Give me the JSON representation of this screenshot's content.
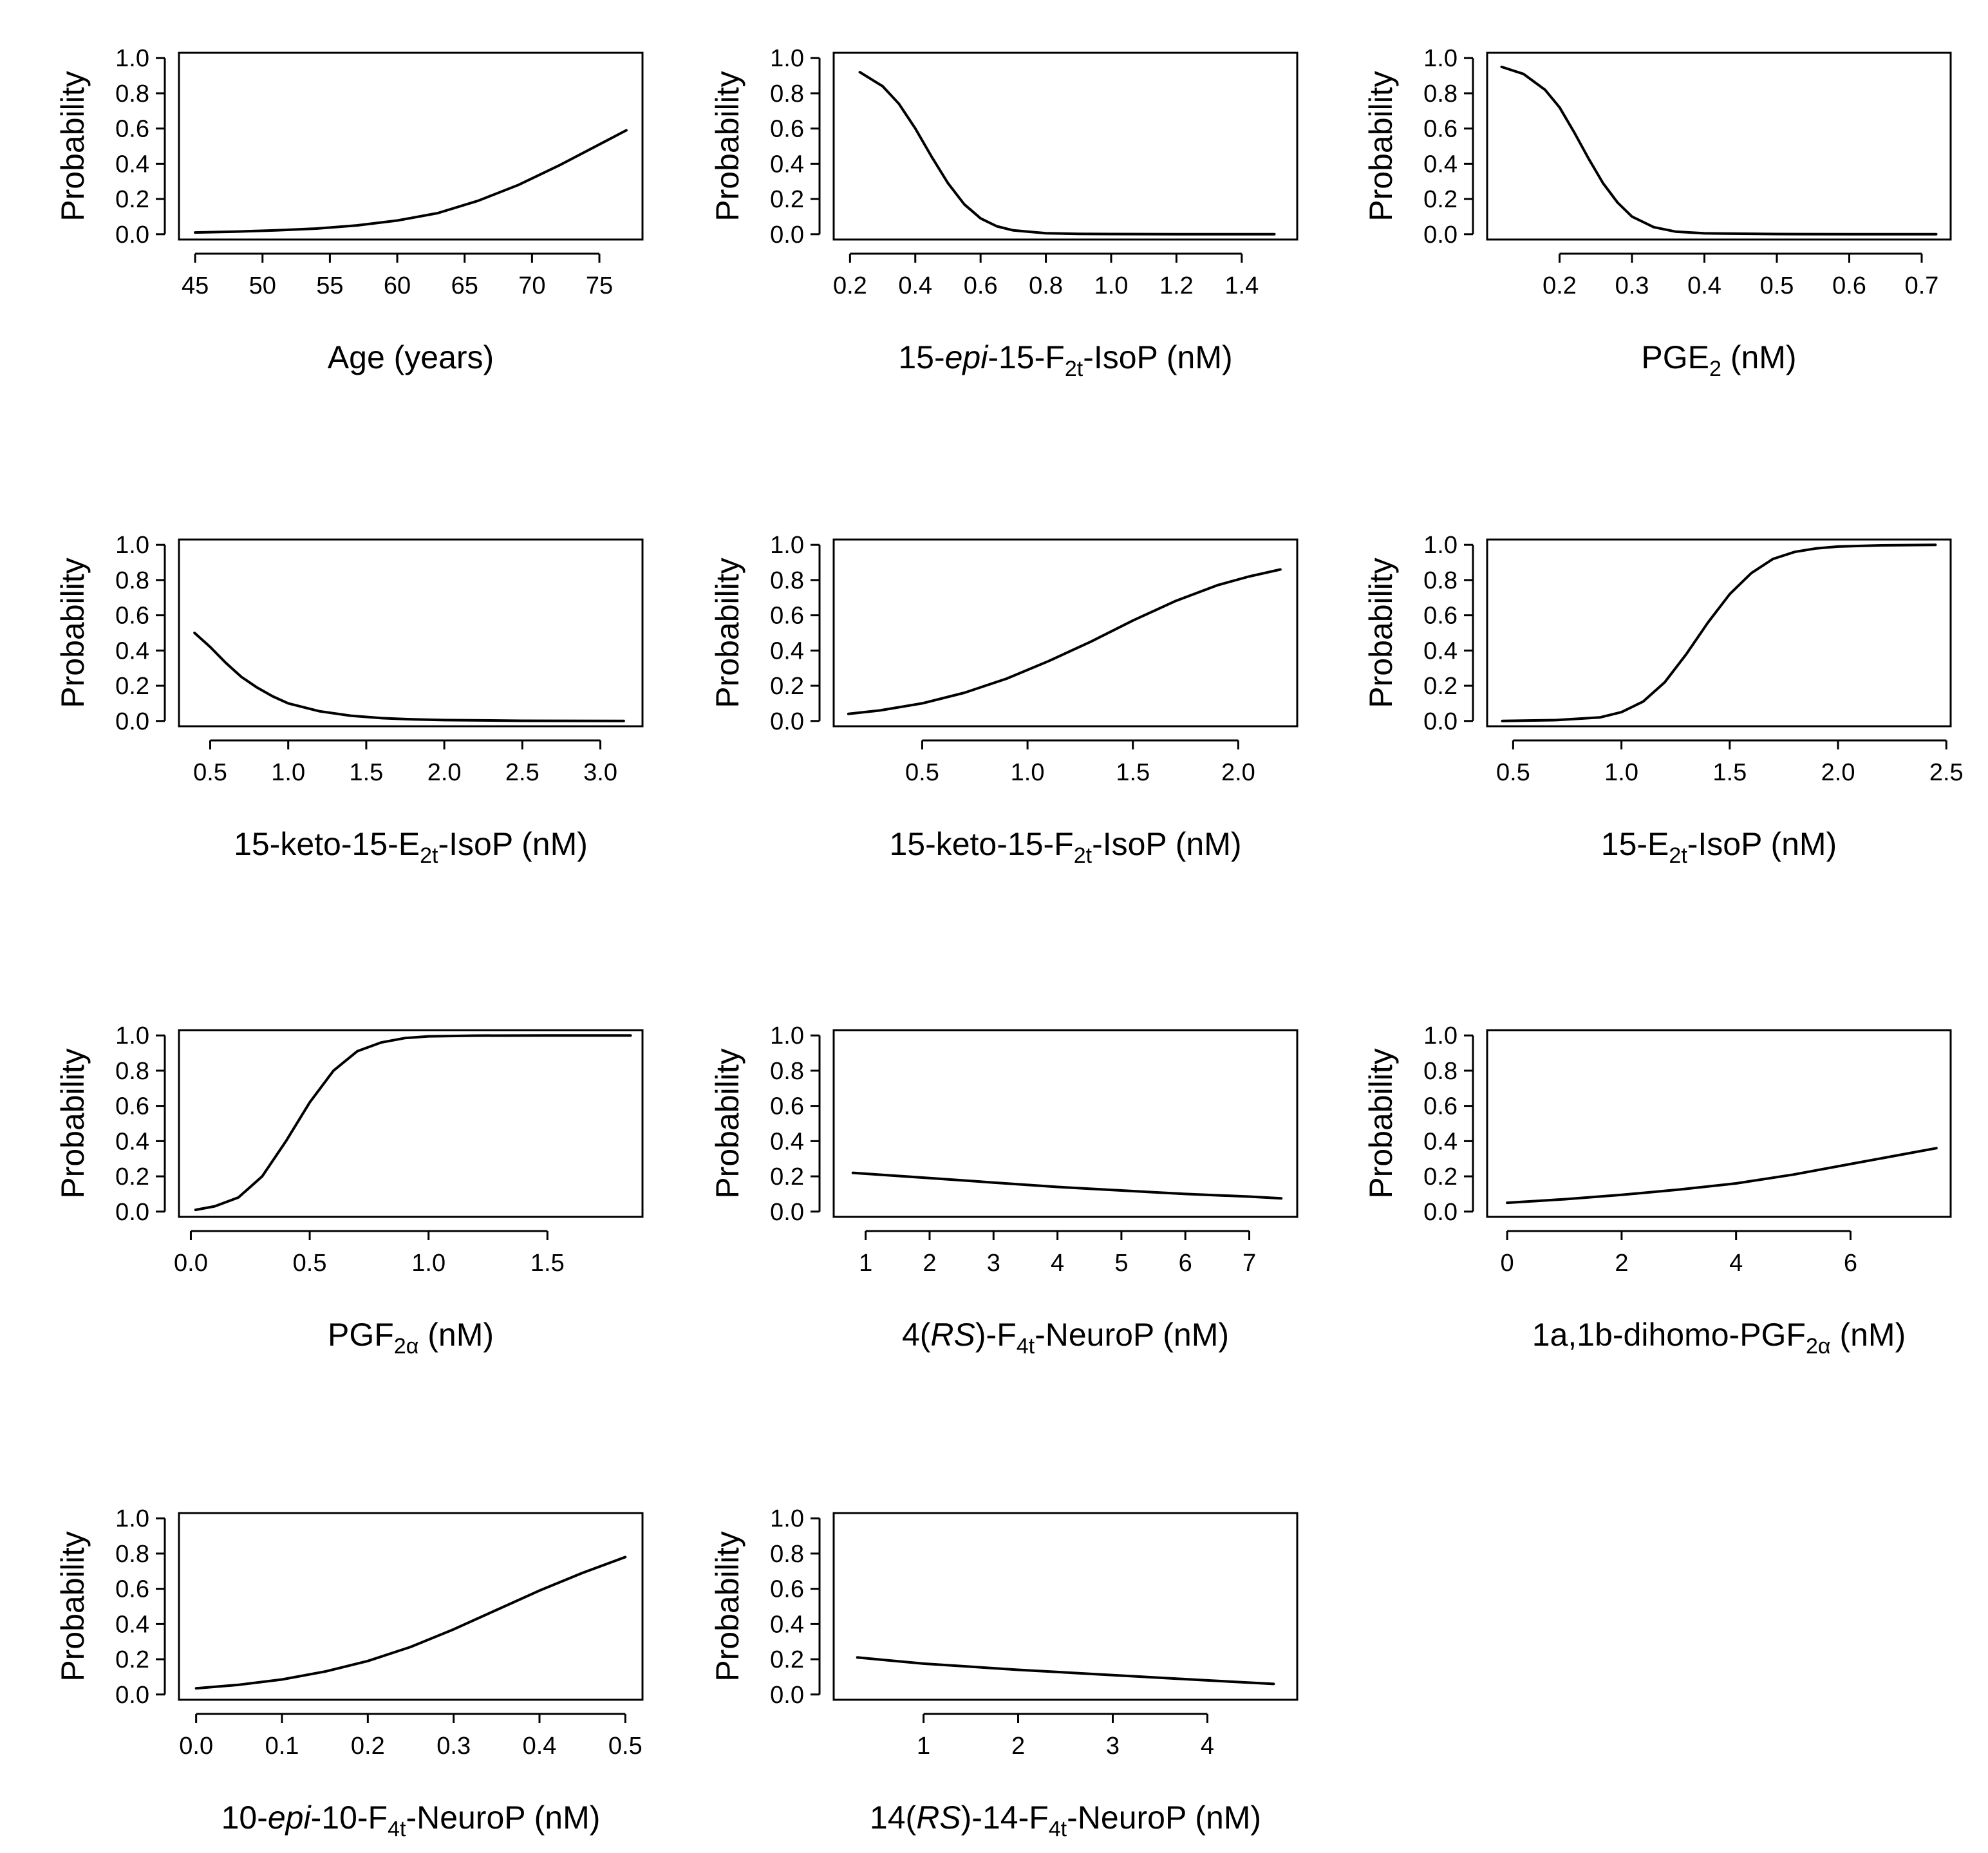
{
  "chart_data": [
    {
      "type": "line",
      "ylabel": "Probability",
      "xlabel": [
        {
          "t": "Age (years)"
        }
      ],
      "xlim": [
        43.8,
        78.2
      ],
      "ylim": [
        -0.03,
        1.03
      ],
      "xticks": [
        45,
        50,
        55,
        60,
        65,
        70,
        75
      ],
      "xtick_labels": [
        "45",
        "50",
        "55",
        "60",
        "65",
        "70",
        "75"
      ],
      "yticks": [
        0.0,
        0.2,
        0.4,
        0.6,
        0.8,
        1.0
      ],
      "ytick_labels": [
        "0.0",
        "0.2",
        "0.4",
        "0.6",
        "0.8",
        "1.0"
      ],
      "x": [
        45,
        48,
        51,
        54,
        57,
        60,
        63,
        66,
        69,
        72,
        75,
        77
      ],
      "y": [
        0.01,
        0.015,
        0.022,
        0.032,
        0.05,
        0.078,
        0.12,
        0.19,
        0.28,
        0.39,
        0.51,
        0.59
      ]
    },
    {
      "type": "line",
      "ylabel": "Probability",
      "xlabel": [
        {
          "t": "15-"
        },
        {
          "t": "epi",
          "i": true
        },
        {
          "t": "-15-F"
        },
        {
          "t": "2t",
          "sub": true
        },
        {
          "t": "-IsoP (nM)"
        }
      ],
      "xlim": [
        0.15,
        1.57
      ],
      "ylim": [
        -0.03,
        1.03
      ],
      "xticks": [
        0.2,
        0.4,
        0.6,
        0.8,
        1.0,
        1.2,
        1.4
      ],
      "xtick_labels": [
        "0.2",
        "0.4",
        "0.6",
        "0.8",
        "1.0",
        "1.2",
        "1.4"
      ],
      "yticks": [
        0.0,
        0.2,
        0.4,
        0.6,
        0.8,
        1.0
      ],
      "ytick_labels": [
        "0.0",
        "0.2",
        "0.4",
        "0.6",
        "0.8",
        "1.0"
      ],
      "x": [
        0.23,
        0.3,
        0.35,
        0.4,
        0.45,
        0.5,
        0.55,
        0.6,
        0.65,
        0.7,
        0.8,
        0.9,
        1.0,
        1.2,
        1.5
      ],
      "y": [
        0.92,
        0.84,
        0.74,
        0.6,
        0.44,
        0.29,
        0.17,
        0.09,
        0.045,
        0.022,
        0.006,
        0.002,
        0.001,
        0.0,
        0.0
      ]
    },
    {
      "type": "line",
      "ylabel": "Probability",
      "xlabel": [
        {
          "t": "PGE"
        },
        {
          "t": "2",
          "sub": true
        },
        {
          "t": " (nM)"
        }
      ],
      "xlim": [
        0.1,
        0.74
      ],
      "ylim": [
        -0.03,
        1.03
      ],
      "xticks": [
        0.2,
        0.3,
        0.4,
        0.5,
        0.6,
        0.7
      ],
      "xtick_labels": [
        "0.2",
        "0.3",
        "0.4",
        "0.5",
        "0.6",
        "0.7"
      ],
      "yticks": [
        0.0,
        0.2,
        0.4,
        0.6,
        0.8,
        1.0
      ],
      "ytick_labels": [
        "0.0",
        "0.2",
        "0.4",
        "0.6",
        "0.8",
        "1.0"
      ],
      "x": [
        0.12,
        0.15,
        0.18,
        0.2,
        0.22,
        0.24,
        0.26,
        0.28,
        0.3,
        0.33,
        0.36,
        0.4,
        0.5,
        0.6,
        0.72
      ],
      "y": [
        0.95,
        0.91,
        0.82,
        0.72,
        0.58,
        0.43,
        0.29,
        0.18,
        0.1,
        0.04,
        0.015,
        0.005,
        0.001,
        0.0,
        0.0
      ]
    },
    {
      "type": "line",
      "ylabel": "Probability",
      "xlabel": [
        {
          "t": "15-keto-15-E"
        },
        {
          "t": "2t",
          "sub": true
        },
        {
          "t": "-IsoP (nM)"
        }
      ],
      "xlim": [
        0.3,
        3.27
      ],
      "ylim": [
        -0.03,
        1.03
      ],
      "xticks": [
        0.5,
        1.0,
        1.5,
        2.0,
        2.5,
        3.0
      ],
      "xtick_labels": [
        "0.5",
        "1.0",
        "1.5",
        "2.0",
        "2.5",
        "3.0"
      ],
      "yticks": [
        0.0,
        0.2,
        0.4,
        0.6,
        0.8,
        1.0
      ],
      "ytick_labels": [
        "0.0",
        "0.2",
        "0.4",
        "0.6",
        "0.8",
        "1.0"
      ],
      "x": [
        0.4,
        0.5,
        0.6,
        0.7,
        0.8,
        0.9,
        1.0,
        1.2,
        1.4,
        1.6,
        1.8,
        2.0,
        2.5,
        3.15
      ],
      "y": [
        0.5,
        0.42,
        0.33,
        0.25,
        0.19,
        0.14,
        0.1,
        0.055,
        0.03,
        0.016,
        0.009,
        0.005,
        0.001,
        0.0
      ]
    },
    {
      "type": "line",
      "ylabel": "Probability",
      "xlabel": [
        {
          "t": "15-keto-15-F"
        },
        {
          "t": "2t",
          "sub": true
        },
        {
          "t": "-IsoP (nM)"
        }
      ],
      "xlim": [
        0.08,
        2.28
      ],
      "ylim": [
        -0.03,
        1.03
      ],
      "xticks": [
        0.5,
        1.0,
        1.5,
        2.0
      ],
      "xtick_labels": [
        "0.5",
        "1.0",
        "1.5",
        "2.0"
      ],
      "yticks": [
        0.0,
        0.2,
        0.4,
        0.6,
        0.8,
        1.0
      ],
      "ytick_labels": [
        "0.0",
        "0.2",
        "0.4",
        "0.6",
        "0.8",
        "1.0"
      ],
      "x": [
        0.15,
        0.3,
        0.5,
        0.7,
        0.9,
        1.1,
        1.3,
        1.5,
        1.7,
        1.9,
        2.05,
        2.2
      ],
      "y": [
        0.04,
        0.06,
        0.1,
        0.16,
        0.24,
        0.34,
        0.45,
        0.57,
        0.68,
        0.77,
        0.82,
        0.86
      ]
    },
    {
      "type": "line",
      "ylabel": "Probability",
      "xlabel": [
        {
          "t": "15-E"
        },
        {
          "t": "2t",
          "sub": true
        },
        {
          "t": "-IsoP (nM)"
        }
      ],
      "xlim": [
        0.38,
        2.52
      ],
      "ylim": [
        -0.03,
        1.03
      ],
      "xticks": [
        0.5,
        1.0,
        1.5,
        2.0,
        2.5
      ],
      "xtick_labels": [
        "0.5",
        "1.0",
        "1.5",
        "2.0",
        "2.5"
      ],
      "yticks": [
        0.0,
        0.2,
        0.4,
        0.6,
        0.8,
        1.0
      ],
      "ytick_labels": [
        "0.0",
        "0.2",
        "0.4",
        "0.6",
        "0.8",
        "1.0"
      ],
      "x": [
        0.45,
        0.7,
        0.9,
        1.0,
        1.1,
        1.2,
        1.3,
        1.4,
        1.5,
        1.6,
        1.7,
        1.8,
        1.9,
        2.0,
        2.2,
        2.45
      ],
      "y": [
        0.0,
        0.005,
        0.02,
        0.05,
        0.11,
        0.22,
        0.38,
        0.56,
        0.72,
        0.84,
        0.92,
        0.96,
        0.98,
        0.99,
        0.997,
        1.0
      ]
    },
    {
      "type": "line",
      "ylabel": "Probability",
      "xlabel": [
        {
          "t": "PGF"
        },
        {
          "t": "2α",
          "sub": true
        },
        {
          "t": " (nM)"
        }
      ],
      "xlim": [
        -0.05,
        1.9
      ],
      "ylim": [
        -0.03,
        1.03
      ],
      "xticks": [
        0.0,
        0.5,
        1.0,
        1.5
      ],
      "xtick_labels": [
        "0.0",
        "0.5",
        "1.0",
        "1.5"
      ],
      "yticks": [
        0.0,
        0.2,
        0.4,
        0.6,
        0.8,
        1.0
      ],
      "ytick_labels": [
        "0.0",
        "0.2",
        "0.4",
        "0.6",
        "0.8",
        "1.0"
      ],
      "x": [
        0.02,
        0.1,
        0.2,
        0.3,
        0.4,
        0.5,
        0.6,
        0.7,
        0.8,
        0.9,
        1.0,
        1.2,
        1.5,
        1.85
      ],
      "y": [
        0.01,
        0.03,
        0.08,
        0.2,
        0.4,
        0.62,
        0.8,
        0.91,
        0.96,
        0.985,
        0.995,
        0.999,
        1.0,
        1.0
      ]
    },
    {
      "type": "line",
      "ylabel": "Probability",
      "xlabel": [
        {
          "t": "4("
        },
        {
          "t": "RS",
          "i": true
        },
        {
          "t": ")-F"
        },
        {
          "t": "4t",
          "sub": true
        },
        {
          "t": "-NeuroP (nM)"
        }
      ],
      "xlim": [
        0.5,
        7.75
      ],
      "ylim": [
        -0.03,
        1.03
      ],
      "xticks": [
        1,
        2,
        3,
        4,
        5,
        6,
        7
      ],
      "xtick_labels": [
        "1",
        "2",
        "3",
        "4",
        "5",
        "6",
        "7"
      ],
      "yticks": [
        0.0,
        0.2,
        0.4,
        0.6,
        0.8,
        1.0
      ],
      "ytick_labels": [
        "0.0",
        "0.2",
        "0.4",
        "0.6",
        "0.8",
        "1.0"
      ],
      "x": [
        0.8,
        2,
        3,
        4,
        5,
        6,
        7,
        7.5
      ],
      "y": [
        0.22,
        0.19,
        0.165,
        0.14,
        0.12,
        0.1,
        0.085,
        0.075
      ]
    },
    {
      "type": "line",
      "ylabel": "Probability",
      "xlabel": [
        {
          "t": "1a,1b-dihomo-PGF"
        },
        {
          "t": "2α",
          "sub": true
        },
        {
          "t": " (nM)"
        }
      ],
      "xlim": [
        -0.35,
        7.75
      ],
      "ylim": [
        -0.03,
        1.03
      ],
      "xticks": [
        0,
        2,
        4,
        6
      ],
      "xtick_labels": [
        "0",
        "2",
        "4",
        "6"
      ],
      "yticks": [
        0.0,
        0.2,
        0.4,
        0.6,
        0.8,
        1.0
      ],
      "ytick_labels": [
        "0.0",
        "0.2",
        "0.4",
        "0.6",
        "0.8",
        "1.0"
      ],
      "x": [
        0,
        1,
        2,
        3,
        4,
        5,
        6,
        7,
        7.5
      ],
      "y": [
        0.05,
        0.07,
        0.095,
        0.125,
        0.16,
        0.21,
        0.27,
        0.33,
        0.36
      ]
    },
    {
      "type": "line",
      "ylabel": "Probability",
      "xlabel": [
        {
          "t": "10-"
        },
        {
          "t": "epi",
          "i": true
        },
        {
          "t": "-10-F"
        },
        {
          "t": "4t",
          "sub": true
        },
        {
          "t": "-NeuroP (nM)"
        }
      ],
      "xlim": [
        -0.02,
        0.52
      ],
      "ylim": [
        -0.03,
        1.03
      ],
      "xticks": [
        0.0,
        0.1,
        0.2,
        0.3,
        0.4,
        0.5
      ],
      "xtick_labels": [
        "0.0",
        "0.1",
        "0.2",
        "0.3",
        "0.4",
        "0.5"
      ],
      "yticks": [
        0.0,
        0.2,
        0.4,
        0.6,
        0.8,
        1.0
      ],
      "ytick_labels": [
        "0.0",
        "0.2",
        "0.4",
        "0.6",
        "0.8",
        "1.0"
      ],
      "x": [
        0.0,
        0.05,
        0.1,
        0.15,
        0.2,
        0.25,
        0.3,
        0.35,
        0.4,
        0.45,
        0.5
      ],
      "y": [
        0.035,
        0.055,
        0.085,
        0.13,
        0.19,
        0.27,
        0.37,
        0.48,
        0.59,
        0.69,
        0.78
      ]
    },
    {
      "type": "line",
      "ylabel": "Probability",
      "xlabel": [
        {
          "t": "14("
        },
        {
          "t": "RS",
          "i": true
        },
        {
          "t": ")-14-F"
        },
        {
          "t": "4t",
          "sub": true
        },
        {
          "t": "-NeuroP (nM)"
        }
      ],
      "xlim": [
        0.05,
        4.95
      ],
      "ylim": [
        -0.03,
        1.03
      ],
      "xticks": [
        1,
        2,
        3,
        4
      ],
      "xtick_labels": [
        "1",
        "2",
        "3",
        "4"
      ],
      "yticks": [
        0.0,
        0.2,
        0.4,
        0.6,
        0.8,
        1.0
      ],
      "ytick_labels": [
        "0.0",
        "0.2",
        "0.4",
        "0.6",
        "0.8",
        "1.0"
      ],
      "x": [
        0.3,
        1,
        2,
        3,
        4,
        4.7
      ],
      "y": [
        0.21,
        0.175,
        0.14,
        0.11,
        0.08,
        0.06
      ]
    }
  ]
}
